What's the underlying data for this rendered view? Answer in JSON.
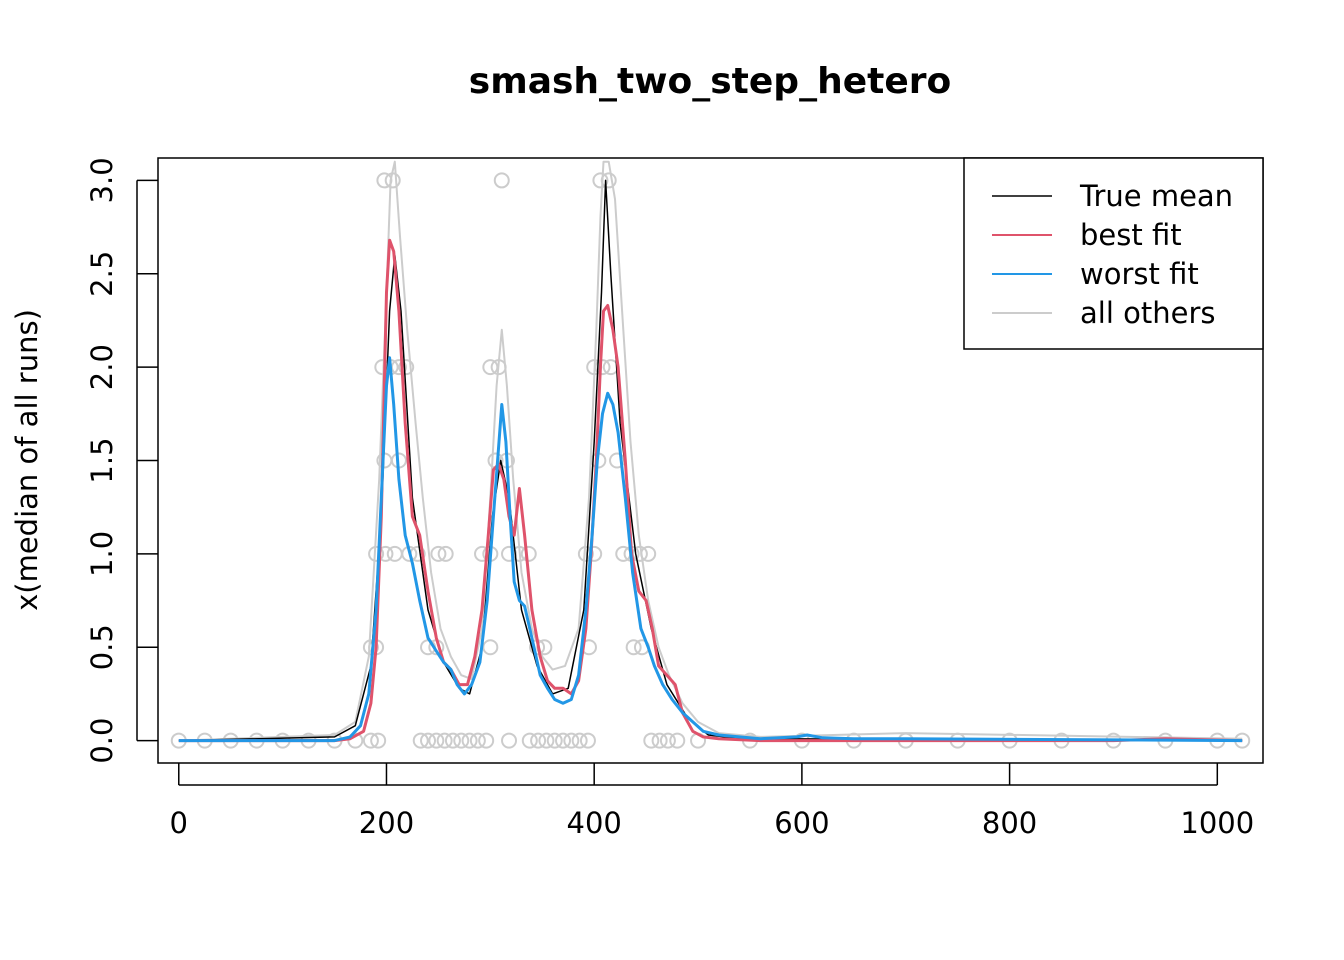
{
  "chart_data": {
    "type": "line",
    "title": "smash_two_step_hetero",
    "xlabel": "",
    "ylabel": "x(median of all runs)",
    "xlim": [
      -20,
      1044
    ],
    "ylim": [
      -0.12,
      3.12
    ],
    "x_ticks": [
      0,
      200,
      400,
      600,
      800,
      1000
    ],
    "y_ticks": [
      0.0,
      0.5,
      1.0,
      1.5,
      2.0,
      2.5,
      3.0
    ],
    "y_tick_labels": [
      "0.0",
      "0.5",
      "1.0",
      "1.5",
      "2.0",
      "2.5",
      "3.0"
    ],
    "grid": false,
    "legend": {
      "position": "top-right",
      "entries": [
        {
          "label": "True mean",
          "color": "#000000"
        },
        {
          "label": "best fit",
          "color": "#DF536B"
        },
        {
          "label": "worst fit",
          "color": "#2297E6"
        },
        {
          "label": "all others",
          "color": "#CCCCCC"
        }
      ]
    },
    "series": [
      {
        "name": "True mean",
        "color": "#000000",
        "points": [
          [
            0,
            0
          ],
          [
            150,
            0.02
          ],
          [
            170,
            0.08
          ],
          [
            185,
            0.4
          ],
          [
            195,
            1.2
          ],
          [
            203,
            2.3
          ],
          [
            208,
            2.6
          ],
          [
            214,
            2.3
          ],
          [
            225,
            1.3
          ],
          [
            240,
            0.7
          ],
          [
            255,
            0.42
          ],
          [
            270,
            0.28
          ],
          [
            280,
            0.25
          ],
          [
            292,
            0.5
          ],
          [
            302,
            1.2
          ],
          [
            310,
            1.5
          ],
          [
            318,
            1.3
          ],
          [
            330,
            0.7
          ],
          [
            345,
            0.4
          ],
          [
            360,
            0.25
          ],
          [
            375,
            0.28
          ],
          [
            390,
            0.7
          ],
          [
            400,
            1.6
          ],
          [
            407,
            2.4
          ],
          [
            411,
            3.0
          ],
          [
            416,
            2.5
          ],
          [
            425,
            1.7
          ],
          [
            440,
            1.0
          ],
          [
            455,
            0.6
          ],
          [
            470,
            0.3
          ],
          [
            490,
            0.12
          ],
          [
            510,
            0.03
          ],
          [
            540,
            0.01
          ],
          [
            1024,
            0
          ]
        ]
      },
      {
        "name": "best fit",
        "color": "#DF536B",
        "points": [
          [
            0,
            0
          ],
          [
            150,
            0.0
          ],
          [
            165,
            0.01
          ],
          [
            178,
            0.05
          ],
          [
            185,
            0.2
          ],
          [
            190,
            0.5
          ],
          [
            195,
            1.2
          ],
          [
            200,
            2.4
          ],
          [
            203,
            2.68
          ],
          [
            207,
            2.62
          ],
          [
            212,
            2.3
          ],
          [
            218,
            1.7
          ],
          [
            225,
            1.2
          ],
          [
            232,
            1.1
          ],
          [
            240,
            0.8
          ],
          [
            248,
            0.55
          ],
          [
            255,
            0.42
          ],
          [
            262,
            0.38
          ],
          [
            270,
            0.3
          ],
          [
            278,
            0.3
          ],
          [
            285,
            0.45
          ],
          [
            292,
            0.7
          ],
          [
            298,
            1.1
          ],
          [
            303,
            1.45
          ],
          [
            308,
            1.48
          ],
          [
            313,
            1.4
          ],
          [
            318,
            1.2
          ],
          [
            323,
            1.1
          ],
          [
            328,
            1.35
          ],
          [
            333,
            1.1
          ],
          [
            340,
            0.7
          ],
          [
            348,
            0.45
          ],
          [
            355,
            0.32
          ],
          [
            362,
            0.28
          ],
          [
            370,
            0.28
          ],
          [
            378,
            0.25
          ],
          [
            385,
            0.32
          ],
          [
            392,
            0.6
          ],
          [
            397,
            1.0
          ],
          [
            402,
            1.5
          ],
          [
            406,
            2.0
          ],
          [
            409,
            2.3
          ],
          [
            413,
            2.33
          ],
          [
            418,
            2.2
          ],
          [
            423,
            2.0
          ],
          [
            430,
            1.5
          ],
          [
            436,
            1.0
          ],
          [
            443,
            0.8
          ],
          [
            450,
            0.75
          ],
          [
            456,
            0.6
          ],
          [
            462,
            0.4
          ],
          [
            470,
            0.35
          ],
          [
            478,
            0.3
          ],
          [
            485,
            0.15
          ],
          [
            495,
            0.05
          ],
          [
            505,
            0.02
          ],
          [
            520,
            0.01
          ],
          [
            560,
            0.0
          ],
          [
            900,
            0.0
          ],
          [
            950,
            0.01
          ],
          [
            1024,
            0.0
          ]
        ]
      },
      {
        "name": "worst fit",
        "color": "#2297E6",
        "points": [
          [
            0,
            0
          ],
          [
            150,
            0.0
          ],
          [
            165,
            0.02
          ],
          [
            175,
            0.08
          ],
          [
            183,
            0.25
          ],
          [
            190,
            0.7
          ],
          [
            195,
            1.3
          ],
          [
            200,
            1.9
          ],
          [
            203,
            2.05
          ],
          [
            207,
            1.8
          ],
          [
            212,
            1.4
          ],
          [
            218,
            1.1
          ],
          [
            225,
            0.95
          ],
          [
            232,
            0.75
          ],
          [
            240,
            0.55
          ],
          [
            248,
            0.48
          ],
          [
            255,
            0.42
          ],
          [
            262,
            0.38
          ],
          [
            268,
            0.3
          ],
          [
            275,
            0.25
          ],
          [
            282,
            0.3
          ],
          [
            290,
            0.42
          ],
          [
            297,
            0.75
          ],
          [
            303,
            1.2
          ],
          [
            307,
            1.5
          ],
          [
            311,
            1.8
          ],
          [
            315,
            1.6
          ],
          [
            319,
            1.2
          ],
          [
            323,
            0.85
          ],
          [
            328,
            0.75
          ],
          [
            333,
            0.72
          ],
          [
            340,
            0.55
          ],
          [
            348,
            0.35
          ],
          [
            355,
            0.28
          ],
          [
            362,
            0.22
          ],
          [
            370,
            0.2
          ],
          [
            378,
            0.22
          ],
          [
            385,
            0.35
          ],
          [
            392,
            0.7
          ],
          [
            398,
            1.1
          ],
          [
            403,
            1.5
          ],
          [
            408,
            1.75
          ],
          [
            413,
            1.86
          ],
          [
            418,
            1.8
          ],
          [
            423,
            1.65
          ],
          [
            430,
            1.3
          ],
          [
            437,
            0.9
          ],
          [
            445,
            0.6
          ],
          [
            452,
            0.5
          ],
          [
            458,
            0.4
          ],
          [
            466,
            0.3
          ],
          [
            475,
            0.22
          ],
          [
            485,
            0.15
          ],
          [
            495,
            0.1
          ],
          [
            505,
            0.05
          ],
          [
            520,
            0.03
          ],
          [
            560,
            0.01
          ],
          [
            595,
            0.02
          ],
          [
            605,
            0.03
          ],
          [
            620,
            0.015
          ],
          [
            650,
            0.01
          ],
          [
            700,
            0.01
          ],
          [
            1024,
            0.0
          ]
        ]
      },
      {
        "name": "all others",
        "color": "#CCCCCC",
        "points": [
          [
            0,
            0
          ],
          [
            150,
            0.03
          ],
          [
            170,
            0.1
          ],
          [
            183,
            0.45
          ],
          [
            193,
            1.4
          ],
          [
            200,
            2.4
          ],
          [
            204,
            3.0
          ],
          [
            208,
            3.1
          ],
          [
            213,
            2.7
          ],
          [
            220,
            2.2
          ],
          [
            228,
            1.7
          ],
          [
            235,
            1.3
          ],
          [
            243,
            0.9
          ],
          [
            252,
            0.6
          ],
          [
            262,
            0.45
          ],
          [
            272,
            0.35
          ],
          [
            282,
            0.33
          ],
          [
            292,
            0.6
          ],
          [
            300,
            1.3
          ],
          [
            306,
            1.9
          ],
          [
            311,
            2.2
          ],
          [
            316,
            1.9
          ],
          [
            322,
            1.4
          ],
          [
            330,
            0.9
          ],
          [
            340,
            0.6
          ],
          [
            350,
            0.45
          ],
          [
            360,
            0.38
          ],
          [
            372,
            0.4
          ],
          [
            385,
            0.6
          ],
          [
            395,
            1.3
          ],
          [
            402,
            2.2
          ],
          [
            406,
            2.8
          ],
          [
            409,
            3.1
          ],
          [
            414,
            3.1
          ],
          [
            420,
            2.9
          ],
          [
            428,
            2.2
          ],
          [
            435,
            1.6
          ],
          [
            443,
            1.1
          ],
          [
            452,
            0.75
          ],
          [
            462,
            0.5
          ],
          [
            472,
            0.35
          ],
          [
            485,
            0.2
          ],
          [
            500,
            0.1
          ],
          [
            520,
            0.04
          ],
          [
            560,
            0.02
          ],
          [
            700,
            0.04
          ],
          [
            1024,
            0.01
          ]
        ]
      }
    ],
    "points_series": {
      "name": "observations",
      "color": "#CCCCCC",
      "points": [
        [
          198,
          3.0
        ],
        [
          206,
          3.0
        ],
        [
          311,
          3.0
        ],
        [
          406,
          3.0
        ],
        [
          414,
          3.0
        ],
        [
          196,
          2.0
        ],
        [
          204,
          2.0
        ],
        [
          212,
          2.0
        ],
        [
          219,
          2.0
        ],
        [
          300,
          2.0
        ],
        [
          308,
          2.0
        ],
        [
          400,
          2.0
        ],
        [
          408,
          2.0
        ],
        [
          416,
          2.0
        ],
        [
          198,
          1.5
        ],
        [
          212,
          1.5
        ],
        [
          305,
          1.5
        ],
        [
          316,
          1.5
        ],
        [
          404,
          1.5
        ],
        [
          422,
          1.5
        ],
        [
          190,
          1.0
        ],
        [
          199,
          1.0
        ],
        [
          208,
          1.0
        ],
        [
          222,
          1.0
        ],
        [
          230,
          1.0
        ],
        [
          250,
          1.0
        ],
        [
          257,
          1.0
        ],
        [
          292,
          1.0
        ],
        [
          300,
          1.0
        ],
        [
          318,
          1.0
        ],
        [
          328,
          1.0
        ],
        [
          337,
          1.0
        ],
        [
          392,
          1.0
        ],
        [
          400,
          1.0
        ],
        [
          428,
          1.0
        ],
        [
          436,
          1.0
        ],
        [
          444,
          1.0
        ],
        [
          452,
          1.0
        ],
        [
          185,
          0.5
        ],
        [
          190,
          0.5
        ],
        [
          240,
          0.5
        ],
        [
          248,
          0.5
        ],
        [
          300,
          0.5
        ],
        [
          345,
          0.5
        ],
        [
          352,
          0.5
        ],
        [
          395,
          0.5
        ],
        [
          438,
          0.5
        ],
        [
          446,
          0.5
        ],
        [
          0,
          0
        ],
        [
          25,
          0
        ],
        [
          50,
          0
        ],
        [
          75,
          0
        ],
        [
          100,
          0
        ],
        [
          125,
          0
        ],
        [
          150,
          0
        ],
        [
          170,
          0
        ],
        [
          185,
          0
        ],
        [
          192,
          0
        ],
        [
          233,
          0
        ],
        [
          240,
          0
        ],
        [
          248,
          0
        ],
        [
          256,
          0
        ],
        [
          264,
          0
        ],
        [
          272,
          0
        ],
        [
          280,
          0
        ],
        [
          288,
          0
        ],
        [
          296,
          0
        ],
        [
          318,
          0
        ],
        [
          338,
          0
        ],
        [
          346,
          0
        ],
        [
          354,
          0
        ],
        [
          362,
          0
        ],
        [
          370,
          0
        ],
        [
          378,
          0
        ],
        [
          386,
          0
        ],
        [
          394,
          0
        ],
        [
          455,
          0
        ],
        [
          463,
          0
        ],
        [
          471,
          0
        ],
        [
          480,
          0
        ],
        [
          500,
          0
        ],
        [
          550,
          0
        ],
        [
          600,
          0
        ],
        [
          650,
          0
        ],
        [
          700,
          0
        ],
        [
          750,
          0
        ],
        [
          800,
          0
        ],
        [
          850,
          0
        ],
        [
          900,
          0
        ],
        [
          950,
          0
        ],
        [
          1000,
          0
        ],
        [
          1024,
          0
        ]
      ]
    }
  }
}
